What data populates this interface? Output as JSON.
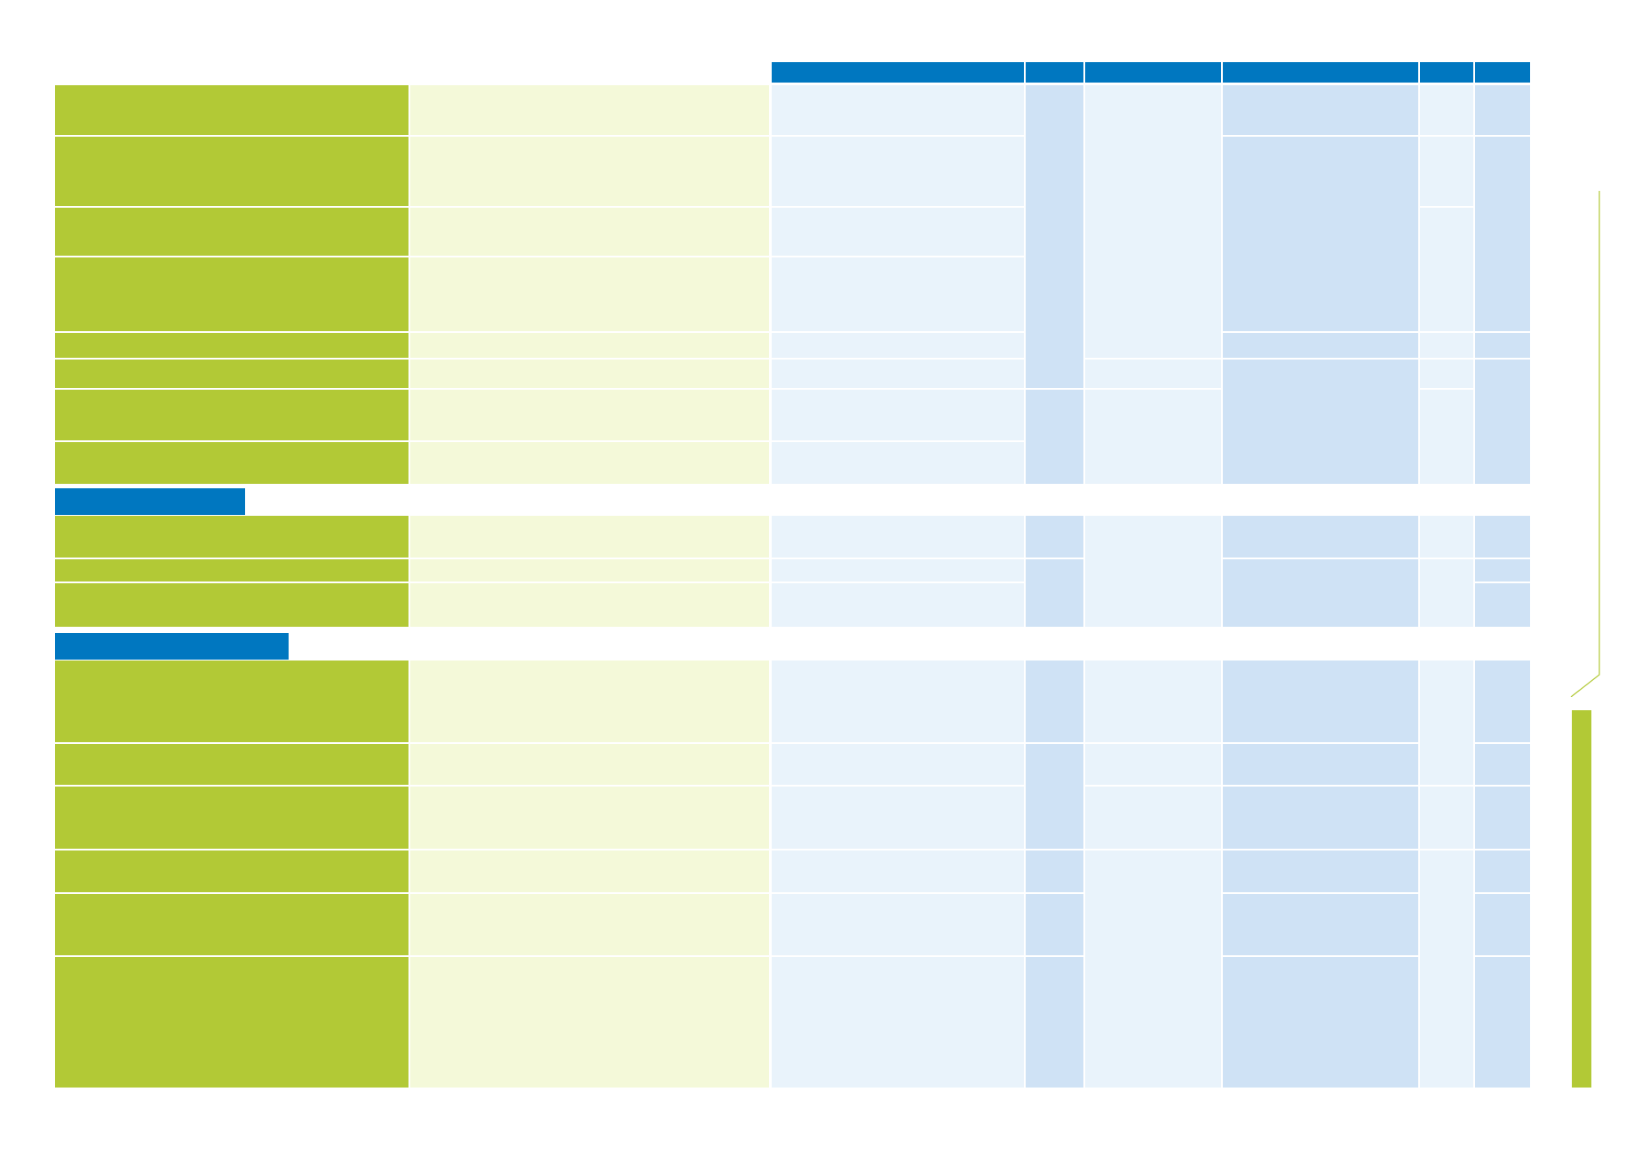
{
  "colors": {
    "header_blue": "#0077c0",
    "criteria_green": "#b2c936",
    "light_green": "#f4f9d9",
    "light_blue": "#e9f3fb",
    "mid_blue": "#cfe2f5",
    "page_background": "#ffffff"
  },
  "table": {
    "column_headers": [
      "",
      "",
      "",
      "",
      "",
      ""
    ],
    "section_headers": [
      "",
      ""
    ]
  }
}
